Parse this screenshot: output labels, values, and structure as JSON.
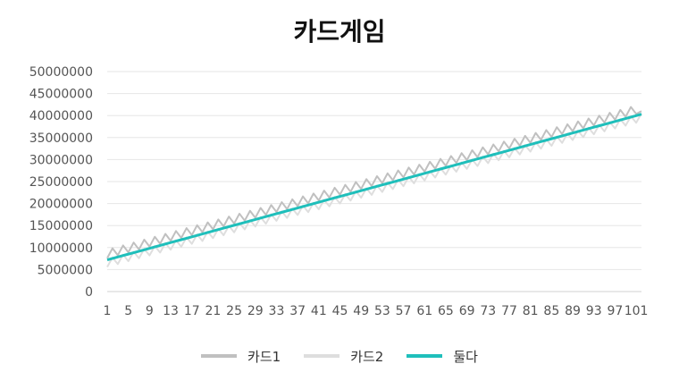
{
  "chart_data": {
    "type": "line",
    "title": "카드게임",
    "xlabel": "",
    "ylabel": "",
    "x_start": 1,
    "x_end": 102,
    "x_tick_labels": [
      "1",
      "5",
      "9",
      "13",
      "17",
      "21",
      "25",
      "29",
      "33",
      "37",
      "41",
      "45",
      "49",
      "53",
      "57",
      "61",
      "65",
      "69",
      "73",
      "77",
      "81",
      "85",
      "89",
      "93",
      "97",
      "101"
    ],
    "ylim": [
      0,
      50000000
    ],
    "y_tick_labels": [
      "0",
      "5000000",
      "10000000",
      "15000000",
      "20000000",
      "25000000",
      "30000000",
      "35000000",
      "40000000",
      "45000000",
      "50000000"
    ],
    "y_ticks": [
      0,
      5000000,
      10000000,
      15000000,
      20000000,
      25000000,
      30000000,
      35000000,
      40000000,
      45000000,
      50000000
    ],
    "grid": true,
    "legend_position": "bottom",
    "series": [
      {
        "name": "카드1",
        "color": "#c0c0c0",
        "linear": {
          "start": 7200000,
          "end": 40300000
        },
        "oscillation": {
          "period": 2,
          "high_offset": 2300000,
          "low_offset": 400000
        },
        "last_point": 41000000
      },
      {
        "name": "카드2",
        "color": "#dedede",
        "linear": {
          "start": 7200000,
          "end": 40300000
        },
        "oscillation": {
          "period": 2,
          "high_offset": 200000,
          "low_offset": -1600000
        }
      },
      {
        "name": "둘다",
        "color": "#1fbfbb",
        "linear": {
          "start": 7200000,
          "end": 40300000
        }
      }
    ]
  }
}
